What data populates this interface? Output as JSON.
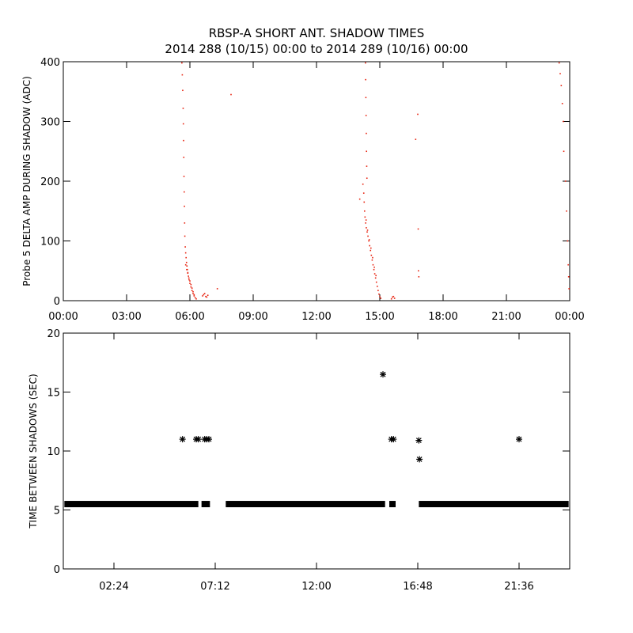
{
  "figure": {
    "title_line1": "RBSP-A SHORT ANT. SHADOW TIMES",
    "title_line2": "2014 288 (10/15) 00:00 to 2014 289 (10/16) 00:00"
  },
  "chart_data": [
    {
      "type": "scatter",
      "ylabel": "Probe 5 DELTA AMP DURING SHADOW (ADC)",
      "xlabel": "",
      "xlim": [
        "00:00",
        "24:00"
      ],
      "ylim": [
        0,
        400
      ],
      "x_ticks": [
        "00:00",
        "03:00",
        "06:00",
        "09:00",
        "12:00",
        "15:00",
        "18:00",
        "21:00",
        "00:00"
      ],
      "y_ticks": [
        0,
        100,
        200,
        300,
        400
      ],
      "marker_color": "#e8220f",
      "series": [
        {
          "x_unit": "hours",
          "points": [
            [
              5.62,
              398
            ],
            [
              5.64,
              378
            ],
            [
              5.66,
              352
            ],
            [
              5.68,
              322
            ],
            [
              5.69,
              296
            ],
            [
              5.7,
              268
            ],
            [
              5.71,
              240
            ],
            [
              5.72,
              208
            ],
            [
              5.73,
              182
            ],
            [
              5.74,
              158
            ],
            [
              5.75,
              130
            ],
            [
              5.76,
              108
            ],
            [
              5.78,
              90
            ],
            [
              5.8,
              80
            ],
            [
              5.82,
              72
            ],
            [
              5.84,
              64
            ],
            [
              5.86,
              58
            ],
            [
              5.88,
              52
            ],
            [
              5.9,
              47
            ],
            [
              5.93,
              41
            ],
            [
              5.96,
              35
            ],
            [
              6.0,
              29
            ],
            [
              6.05,
              23
            ],
            [
              6.1,
              17
            ],
            [
              6.15,
              12
            ],
            [
              6.2,
              8
            ],
            [
              6.25,
              5
            ],
            [
              6.3,
              3
            ],
            [
              5.8,
              60
            ],
            [
              5.85,
              52
            ],
            [
              5.9,
              46
            ],
            [
              5.95,
              38
            ],
            [
              6.0,
              33
            ],
            [
              6.05,
              27
            ],
            [
              6.1,
              21
            ],
            [
              6.15,
              15
            ],
            [
              6.2,
              10
            ],
            [
              6.6,
              8
            ],
            [
              6.65,
              10
            ],
            [
              6.7,
              12
            ],
            [
              6.75,
              7
            ],
            [
              6.8,
              6
            ],
            [
              6.85,
              9
            ],
            [
              7.3,
              20
            ],
            [
              7.95,
              345
            ],
            [
              14.05,
              170
            ],
            [
              14.2,
              195
            ],
            [
              14.24,
              180
            ],
            [
              14.26,
              165
            ],
            [
              14.28,
              150
            ],
            [
              14.3,
              140
            ],
            [
              14.33,
              130
            ],
            [
              14.36,
              122
            ],
            [
              14.4,
              115
            ],
            [
              14.44,
              108
            ],
            [
              14.48,
              100
            ],
            [
              14.52,
              92
            ],
            [
              14.56,
              84
            ],
            [
              14.6,
              76
            ],
            [
              14.64,
              68
            ],
            [
              14.68,
              60
            ],
            [
              14.72,
              52
            ],
            [
              14.76,
              45
            ],
            [
              14.8,
              38
            ],
            [
              14.84,
              31
            ],
            [
              14.88,
              24
            ],
            [
              14.92,
              17
            ],
            [
              14.96,
              11
            ],
            [
              15.0,
              7
            ],
            [
              15.05,
              4
            ],
            [
              14.35,
              135
            ],
            [
              14.42,
              118
            ],
            [
              14.5,
              102
            ],
            [
              14.58,
              88
            ],
            [
              14.66,
              72
            ],
            [
              14.74,
              56
            ],
            [
              14.82,
              42
            ],
            [
              14.32,
              398
            ],
            [
              14.33,
              370
            ],
            [
              14.34,
              340
            ],
            [
              14.35,
              310
            ],
            [
              14.36,
              280
            ],
            [
              14.37,
              250
            ],
            [
              14.38,
              225
            ],
            [
              14.39,
              205
            ],
            [
              15.55,
              3
            ],
            [
              15.6,
              6
            ],
            [
              15.65,
              7
            ],
            [
              15.7,
              4
            ],
            [
              16.7,
              270
            ],
            [
              16.8,
              312
            ],
            [
              16.82,
              120
            ],
            [
              16.83,
              50
            ],
            [
              16.85,
              40
            ],
            [
              23.5,
              398
            ],
            [
              23.55,
              380
            ],
            [
              23.6,
              360
            ],
            [
              23.65,
              330
            ],
            [
              23.7,
              300
            ],
            [
              23.72,
              250
            ],
            [
              23.8,
              200
            ],
            [
              23.85,
              150
            ],
            [
              23.9,
              100
            ],
            [
              23.93,
              60
            ],
            [
              23.95,
              40
            ],
            [
              23.97,
              20
            ]
          ]
        }
      ]
    },
    {
      "type": "scatter",
      "ylabel": "TIME BETWEEN SHADOWS (SEC)",
      "xlabel": "",
      "xlim": [
        "00:00",
        "24:00"
      ],
      "ylim": [
        0,
        20
      ],
      "x_ticks": [
        "02:24",
        "07:12",
        "12:00",
        "16:48",
        "21:36"
      ],
      "y_ticks": [
        0,
        5,
        10,
        15,
        20
      ],
      "marker": "asterisk",
      "marker_color": "#000000",
      "baseline": {
        "value": 5.5,
        "segments": [
          [
            0.05,
            6.4
          ],
          [
            6.55,
            6.95
          ],
          [
            7.7,
            15.25
          ],
          [
            15.45,
            15.75
          ],
          [
            16.85,
            23.95
          ]
        ]
      },
      "series": [
        {
          "x_unit": "hours",
          "points": [
            [
              5.65,
              11.0
            ],
            [
              6.3,
              11.0
            ],
            [
              6.4,
              11.0
            ],
            [
              6.7,
              11.0
            ],
            [
              6.8,
              11.0
            ],
            [
              6.9,
              11.0
            ],
            [
              15.15,
              16.5
            ],
            [
              15.55,
              11.0
            ],
            [
              15.65,
              11.0
            ],
            [
              16.85,
              10.9
            ],
            [
              16.88,
              9.3
            ],
            [
              21.6,
              11.0
            ]
          ]
        }
      ]
    }
  ]
}
